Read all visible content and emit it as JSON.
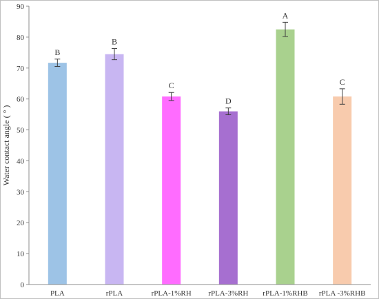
{
  "chart_data": {
    "type": "bar",
    "title": "",
    "xlabel": "",
    "ylabel": "Water contact angle ( ° )",
    "ylim": [
      0,
      90
    ],
    "yticks": [
      0,
      10,
      20,
      30,
      40,
      50,
      60,
      70,
      80,
      90
    ],
    "grid": false,
    "categories": [
      "PLA",
      "rPLA",
      "rPLA-1%RH",
      "rPLA-3%RH",
      "rPLA-1%RHB",
      "rPLA -3%RHB"
    ],
    "values": [
      71.7,
      74.5,
      60.8,
      56.0,
      82.5,
      60.8
    ],
    "errors": [
      1.2,
      1.8,
      1.3,
      1.1,
      2.3,
      2.5
    ],
    "significance_letters": [
      "B",
      "B",
      "C",
      "D",
      "A",
      "C"
    ],
    "colors": [
      "#9dc3e6",
      "#c8b6f2",
      "#ff6cff",
      "#a66fd0",
      "#a9d18e",
      "#f8cbad"
    ]
  }
}
